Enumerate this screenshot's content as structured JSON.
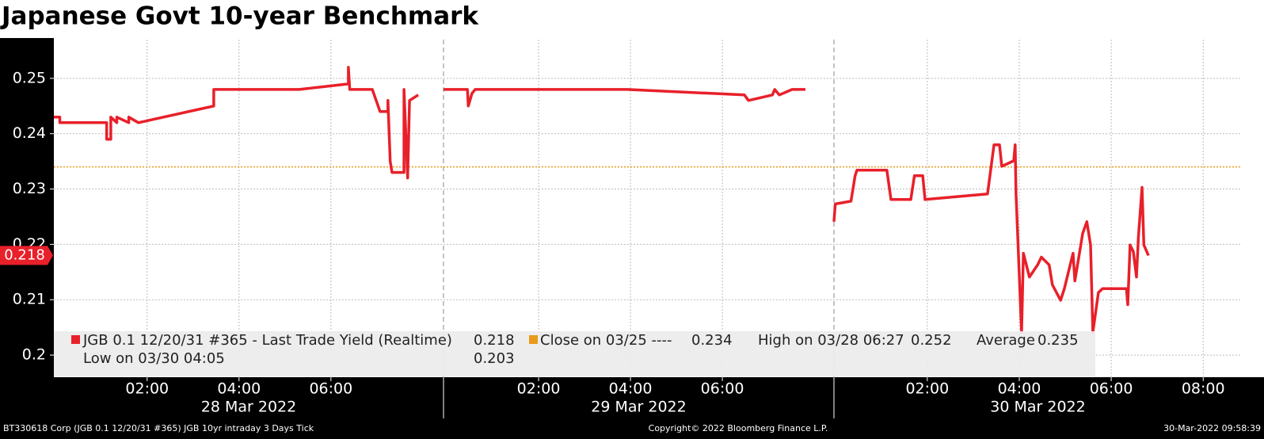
{
  "chart_data": {
    "type": "line",
    "title": "Japanese Govt 10-year Benchmark",
    "ylim": [
      0.196,
      0.257
    ],
    "yticks": [
      0.2,
      0.21,
      0.22,
      0.23,
      0.24,
      0.25
    ],
    "grid": true,
    "series": [
      {
        "name": "JGB 0.1 12/20/31 #365 - Last Trade Yield (Realtime)",
        "color": "#e8202a",
        "last_value": 0.218
      }
    ],
    "close_line": {
      "label": "Close on 03/25 ----",
      "value": 0.234,
      "color": "#e89a1a"
    },
    "stats": [
      {
        "label": "High on 03/28 06:27",
        "value": 0.252
      },
      {
        "label": "Average",
        "value": 0.235
      },
      {
        "label": "Low on 03/30 04:05",
        "value": 0.203
      }
    ],
    "days": [
      {
        "label": "28 Mar 2022",
        "xlim": [
          -0.03,
          8.45
        ],
        "xticks": [
          {
            "value": 2,
            "label": "02:00"
          },
          {
            "value": 4,
            "label": "04:00"
          },
          {
            "value": 6,
            "label": "06:00"
          }
        ],
        "x": [
          -0.03,
          0.1,
          0.1,
          1.12,
          1.12,
          1.21,
          1.21,
          1.34,
          1.34,
          1.6,
          1.6,
          1.81,
          3.45,
          3.45,
          5.31,
          6.38,
          6.38,
          6.41,
          6.9,
          7.07,
          7.24,
          7.24,
          7.29,
          7.33,
          7.59,
          7.59,
          7.67,
          7.71,
          7.9
        ],
        "values": [
          0.243,
          0.243,
          0.242,
          0.242,
          0.239,
          0.239,
          0.243,
          0.242,
          0.243,
          0.242,
          0.243,
          0.242,
          0.245,
          0.248,
          0.248,
          0.249,
          0.252,
          0.248,
          0.248,
          0.244,
          0.244,
          0.246,
          0.235,
          0.233,
          0.233,
          0.248,
          0.232,
          0.246,
          0.247
        ]
      },
      {
        "label": "29 Mar 2022",
        "xlim": [
          -0.07,
          8.43
        ],
        "xticks": [
          {
            "value": 2,
            "label": "02:00"
          },
          {
            "value": 4,
            "label": "04:00"
          },
          {
            "value": 6,
            "label": "06:00"
          }
        ],
        "x": [
          -0.07,
          0.45,
          0.47,
          0.55,
          0.62,
          3.93,
          6.48,
          6.57,
          7.09,
          7.14,
          7.24,
          7.52,
          7.81
        ],
        "values": [
          0.248,
          0.248,
          0.245,
          0.2473,
          0.248,
          0.248,
          0.247,
          0.246,
          0.247,
          0.248,
          0.247,
          0.248,
          0.248
        ]
      },
      {
        "label": "30 Mar 2022",
        "xlim": [
          -0.03,
          8.84
        ],
        "xticks": [
          {
            "value": 2,
            "label": "02:00"
          },
          {
            "value": 4,
            "label": "04:00"
          },
          {
            "value": 6,
            "label": "06:00"
          },
          {
            "value": 8,
            "label": "08:00"
          }
        ],
        "x": [
          -0.03,
          0,
          0.34,
          0.43,
          0.47,
          1.12,
          1.21,
          1.64,
          1.72,
          1.9,
          1.95,
          3.31,
          3.45,
          3.57,
          3.62,
          3.88,
          3.91,
          3.93,
          4.05,
          4.09,
          4.22,
          4.4,
          4.48,
          4.65,
          4.72,
          4.9,
          4.98,
          5.17,
          5.21,
          5.38,
          5.47,
          5.55,
          5.6,
          5.72,
          5.81,
          6.33,
          6.36,
          6.41,
          6.48,
          6.55,
          6.59,
          6.67,
          6.71,
          6.81
        ],
        "values": [
          0.2241,
          0.2273,
          0.2278,
          0.2324,
          0.2334,
          0.2334,
          0.2281,
          0.2281,
          0.2324,
          0.2324,
          0.2281,
          0.2291,
          0.238,
          0.238,
          0.2341,
          0.2351,
          0.238,
          0.2291,
          0.2041,
          0.2184,
          0.2141,
          0.2163,
          0.2177,
          0.2163,
          0.2127,
          0.2099,
          0.212,
          0.2184,
          0.2134,
          0.222,
          0.2241,
          0.2199,
          0.2041,
          0.2113,
          0.212,
          0.212,
          0.2091,
          0.2199,
          0.2187,
          0.2141,
          0.2213,
          0.2303,
          0.2199,
          0.218
        ]
      }
    ],
    "footer": {
      "left": "BT330618 Corp (JGB 0.1 12/20/31 #365) JGB 10yr intraday 3 Days  Tick",
      "center": "Copyright© 2022 Bloomberg Finance L.P.",
      "right": "30-Mar-2022 09:58:39"
    }
  }
}
